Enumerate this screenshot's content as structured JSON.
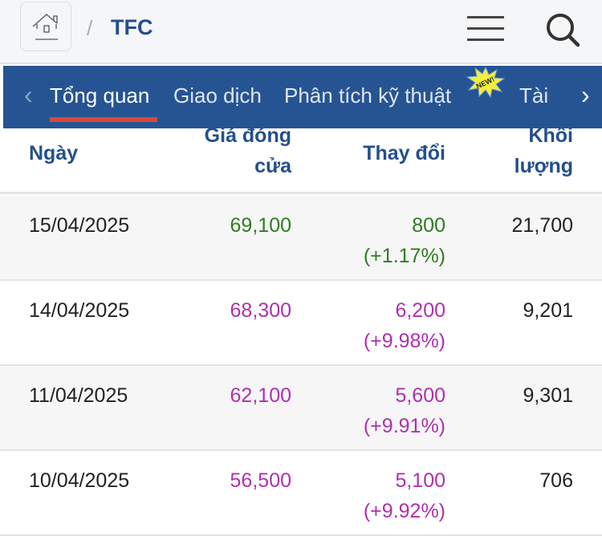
{
  "header": {
    "separator": "/",
    "ticker": "TFC"
  },
  "tabs": {
    "items": [
      "Tổng quan",
      "Giao dịch",
      "Phân tích kỹ thuật",
      "Tài c"
    ],
    "active": 0,
    "new_badge": "NEW!"
  },
  "table": {
    "columns": [
      {
        "line1": "Ngày",
        "line2": ""
      },
      {
        "line1": "Giá đóng",
        "line2": "cửa"
      },
      {
        "line1": "Thay đổi",
        "line2": ""
      },
      {
        "line1": "Khối",
        "line2": "lượng"
      }
    ],
    "rows": [
      {
        "date": "15/04/2025",
        "close": "69,100",
        "change": "800",
        "pct": "(+1.17%)",
        "volume": "21,700",
        "color": "#2e7d1e"
      },
      {
        "date": "14/04/2025",
        "close": "68,300",
        "change": "6,200",
        "pct": "(+9.98%)",
        "volume": "9,201",
        "color": "#b02fae"
      },
      {
        "date": "11/04/2025",
        "close": "62,100",
        "change": "5,600",
        "pct": "(+9.91%)",
        "volume": "9,301",
        "color": "#b02fae"
      },
      {
        "date": "10/04/2025",
        "close": "56,500",
        "change": "5,100",
        "pct": "(+9.92%)",
        "volume": "706",
        "color": "#b02fae"
      }
    ]
  }
}
